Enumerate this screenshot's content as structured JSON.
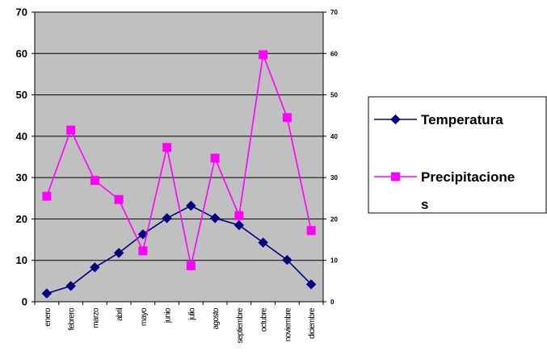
{
  "chart_data": {
    "type": "line",
    "categories": [
      "enero",
      "febrero",
      "marzo",
      "abril",
      "mayo",
      "junio",
      "julio",
      "agosto",
      "septiembre",
      "octubre",
      "noviembre",
      "diciembre"
    ],
    "series": [
      {
        "name": "Temperatura",
        "color": "#000080",
        "marker": "diamond",
        "values": [
          2,
          3.8,
          8.3,
          11.8,
          16.3,
          20.2,
          23.2,
          20.2,
          18.5,
          14.3,
          10.1,
          4.2
        ]
      },
      {
        "name": "Precipitaciones",
        "color": "#ff00ff",
        "marker": "square",
        "values": [
          25.5,
          41.5,
          29.3,
          24.7,
          12.3,
          37.3,
          8.7,
          34.7,
          20.8,
          59.7,
          44.5,
          17.2
        ]
      }
    ],
    "ylim": [
      0,
      70
    ],
    "yticks": [
      0,
      10,
      20,
      30,
      40,
      50,
      60,
      70
    ],
    "secondary_yticks": [
      0,
      10,
      20,
      30,
      40,
      50,
      60,
      70
    ],
    "legend_lines": [
      [
        "Temperatura"
      ],
      [
        "Precipitacione",
        "s"
      ]
    ],
    "legend_position": "right",
    "grid": "horizontal",
    "plot_background": "#c0c0c0",
    "title": "",
    "xlabel": "",
    "ylabel": ""
  }
}
